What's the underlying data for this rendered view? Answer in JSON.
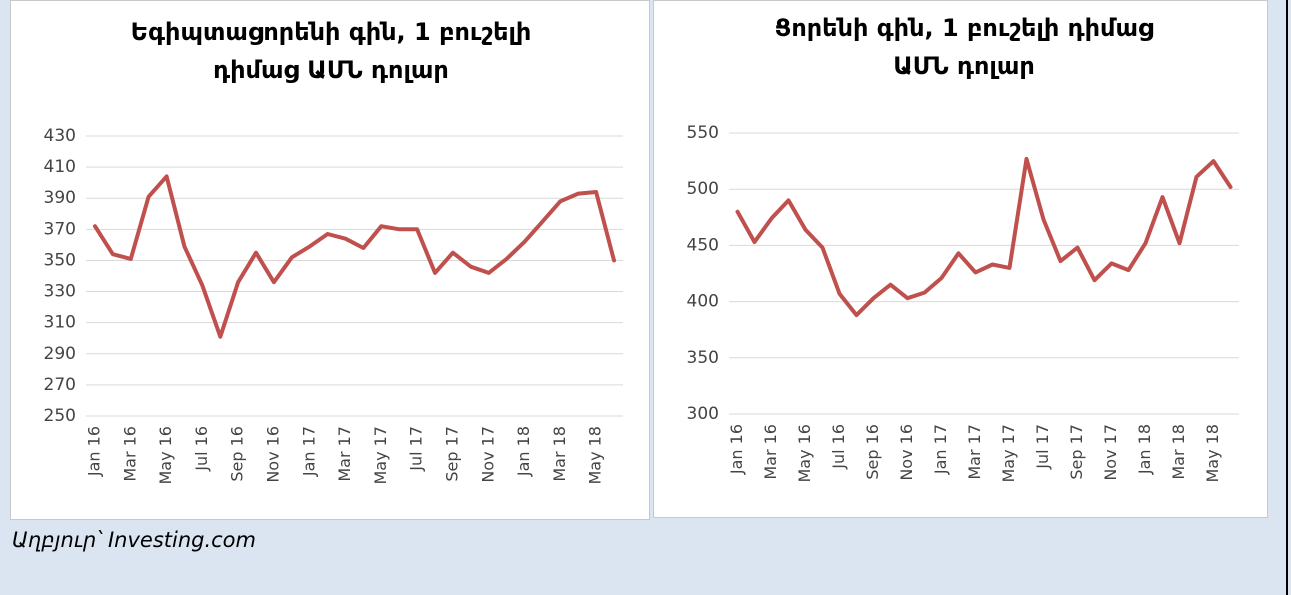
{
  "chart_data": [
    {
      "type": "line",
      "title": "Եգիպտացորենի գին, 1 բուշելի դիմաց ԱՄՆ դոլար",
      "categories": [
        "Jan 16",
        null,
        "Mar 16",
        null,
        "May 16",
        null,
        "Jul 16",
        null,
        "Sep 16",
        null,
        "Nov 16",
        null,
        "Jan 17",
        null,
        "Mar 17",
        null,
        "May 17",
        null,
        "Jul 17",
        null,
        "Sep 17",
        null,
        "Nov 17",
        null,
        "Jan 18",
        null,
        "Mar 18",
        null,
        "May 18",
        null
      ],
      "series": [
        {
          "name": "Եգիպտացորենի գին",
          "color": "#c0504d",
          "values": [
            372,
            354,
            351,
            391,
            404,
            359,
            334,
            301,
            336,
            355,
            336,
            352,
            359,
            367,
            364,
            358,
            372,
            370,
            370,
            342,
            355,
            346,
            342,
            351,
            362,
            375,
            388,
            393,
            394,
            350
          ]
        }
      ],
      "ylim": [
        250,
        430
      ],
      "yticks": [
        250,
        270,
        290,
        310,
        330,
        350,
        370,
        390,
        410,
        430
      ],
      "grid": true
    },
    {
      "type": "line",
      "title": "Ցորենի գին, 1 բուշելի դիմաց ԱՄՆ դոլար",
      "categories": [
        "Jan 16",
        null,
        "Mar 16",
        null,
        "May 16",
        null,
        "Jul 16",
        null,
        "Sep 16",
        null,
        "Nov 16",
        null,
        "Jan 17",
        null,
        "Mar 17",
        null,
        "May 17",
        null,
        "Jul 17",
        null,
        "Sep 17",
        null,
        "Nov 17",
        null,
        "Jan 18",
        null,
        "Mar 18",
        null,
        "May 18",
        null
      ],
      "series": [
        {
          "name": "Ցորենի գին",
          "color": "#c0504d",
          "values": [
            480,
            453,
            474,
            490,
            464,
            448,
            407,
            388,
            403,
            415,
            403,
            408,
            421,
            443,
            426,
            433,
            430,
            527,
            473,
            436,
            448,
            419,
            434,
            428,
            452,
            493,
            452,
            511,
            525,
            502
          ]
        }
      ],
      "ylim": [
        300,
        550
      ],
      "yticks": [
        300,
        350,
        400,
        450,
        500,
        550
      ],
      "grid": true
    }
  ],
  "source": "Աղբյուր՝ Investing.com"
}
